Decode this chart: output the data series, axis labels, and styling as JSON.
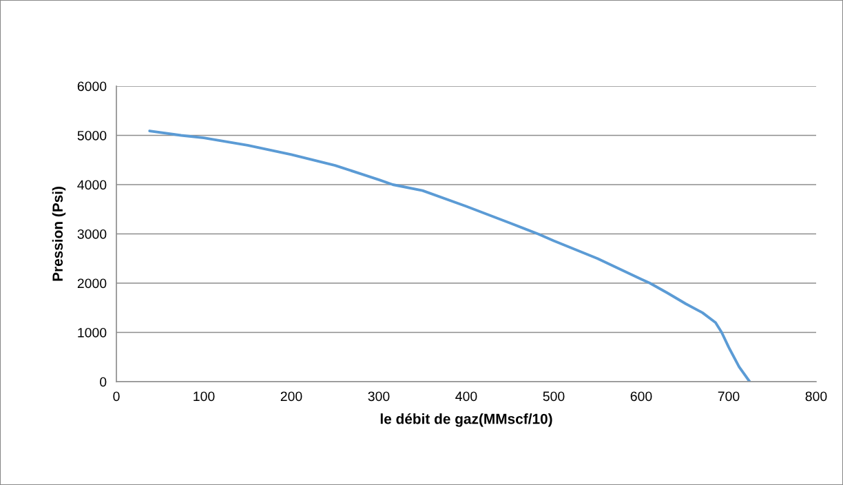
{
  "chart_data": {
    "type": "line",
    "xlabel": "le débit de gaz(MMscf/10)",
    "ylabel": "Pression (Psi)",
    "x": [
      38,
      74,
      100,
      150,
      200,
      250,
      300,
      316,
      350,
      400,
      450,
      482,
      500,
      550,
      600,
      610,
      630,
      651,
      670,
      685,
      692,
      700,
      712,
      724
    ],
    "series": [
      {
        "color": "#5b9bd5",
        "values": [
          5090,
          5000,
          4950,
          4800,
          4610,
          4390,
          4100,
          4000,
          3880,
          3560,
          3220,
          3000,
          2860,
          2500,
          2080,
          2000,
          1800,
          1580,
          1400,
          1200,
          1000,
          700,
          300,
          0
        ]
      }
    ],
    "xlim": [
      0,
      800
    ],
    "xticks": [
      0,
      100,
      200,
      300,
      400,
      500,
      600,
      700,
      800
    ],
    "ylim": [
      0,
      6000
    ],
    "yticks": [
      0,
      1000,
      2000,
      3000,
      4000,
      5000,
      6000
    ],
    "grid": "y",
    "legend": false,
    "marker": "none",
    "line_style": "solid"
  }
}
